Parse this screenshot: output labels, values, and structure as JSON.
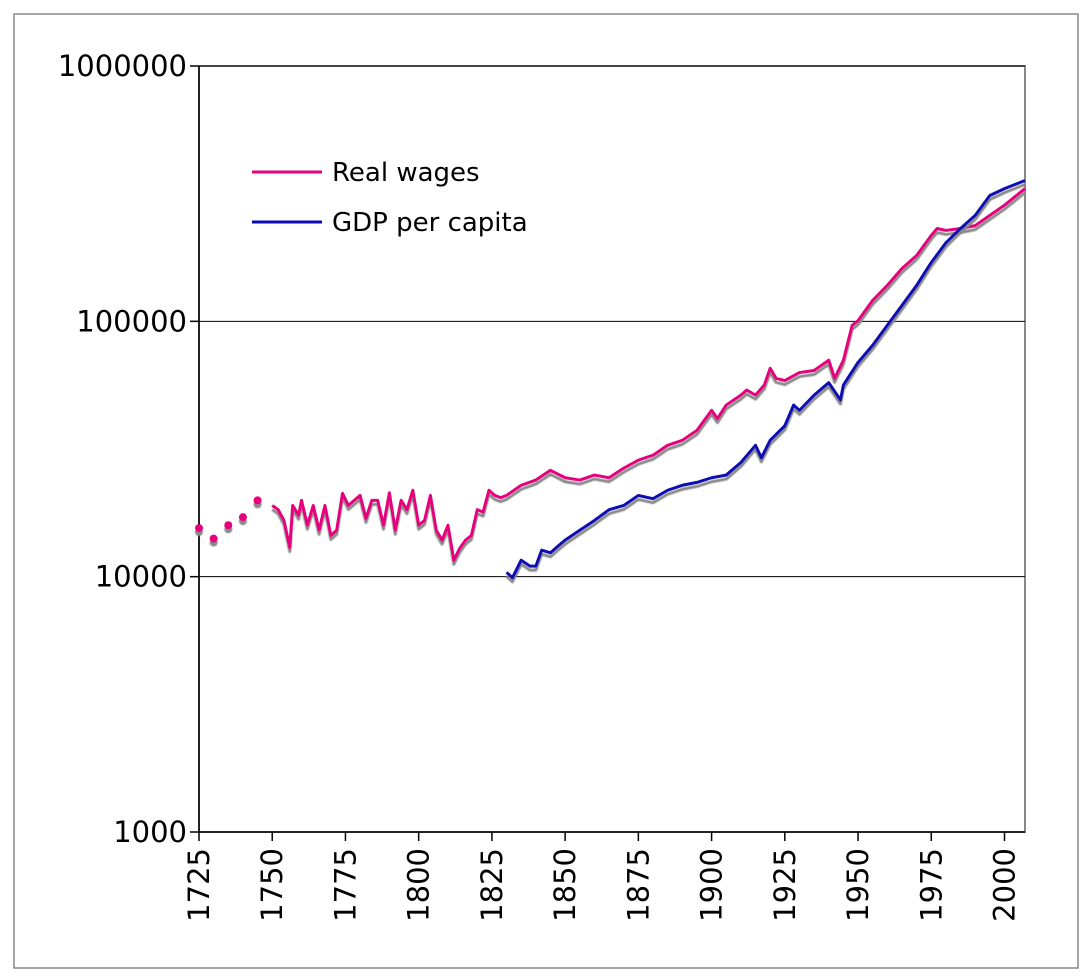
{
  "chart_data": {
    "type": "line",
    "log_y": true,
    "grid": true,
    "legend": "upper left",
    "xlim": [
      1725,
      2007
    ],
    "ylim": [
      1000,
      1000000
    ],
    "xticks": [
      1725,
      1750,
      1775,
      1800,
      1825,
      1850,
      1875,
      1900,
      1925,
      1950,
      1975,
      2000
    ],
    "yticks": [
      1000,
      10000,
      100000,
      1000000
    ],
    "series": [
      {
        "name": "Real wages",
        "color": "#e6007e",
        "x": [
          1725,
          1726,
          1730,
          1731,
          1735,
          1736,
          1740,
          1741,
          1745,
          1746,
          1750,
          1752,
          1754,
          1756,
          1757,
          1759,
          1760,
          1762,
          1764,
          1766,
          1768,
          1770,
          1772,
          1774,
          1776,
          1778,
          1780,
          1782,
          1784,
          1786,
          1788,
          1790,
          1792,
          1794,
          1796,
          1798,
          1800,
          1802,
          1804,
          1806,
          1808,
          1810,
          1812,
          1814,
          1816,
          1818,
          1820,
          1822,
          1824,
          1826,
          1828,
          1830,
          1835,
          1840,
          1845,
          1850,
          1855,
          1860,
          1865,
          1870,
          1875,
          1880,
          1885,
          1890,
          1895,
          1900,
          1902,
          1905,
          1910,
          1912,
          1915,
          1918,
          1920,
          1922,
          1925,
          1930,
          1935,
          1940,
          1942,
          1945,
          1948,
          1950,
          1955,
          1960,
          1965,
          1970,
          1975,
          1977,
          1980,
          1985,
          1990,
          1995,
          2000,
          2007
        ],
        "values": [
          15500,
          null,
          14100,
          null,
          15900,
          null,
          17100,
          null,
          19900,
          null,
          19000,
          18300,
          16600,
          13000,
          19000,
          17400,
          19900,
          15900,
          19000,
          15200,
          19000,
          14500,
          15200,
          21200,
          19000,
          19900,
          20800,
          16900,
          19900,
          19900,
          15900,
          21300,
          15200,
          19900,
          18300,
          21800,
          15900,
          16600,
          20800,
          15200,
          13900,
          15900,
          11600,
          12900,
          13900,
          14500,
          18300,
          17900,
          21800,
          20800,
          20400,
          20800,
          22800,
          23900,
          26100,
          24400,
          23900,
          25000,
          24400,
          26600,
          28600,
          29900,
          32700,
          34200,
          37400,
          44800,
          41600,
          47000,
          51400,
          53800,
          51400,
          56300,
          65500,
          59800,
          58600,
          63000,
          64200,
          70400,
          59800,
          70400,
          96500,
          100600,
          120800,
          138300,
          161000,
          181000,
          217000,
          231000,
          227000,
          231000,
          237000,
          260000,
          285000,
          331000
        ]
      },
      {
        "name": "GDP per capita",
        "color": "#0a0ab4",
        "x": [
          1830,
          1832,
          1835,
          1838,
          1840,
          1842,
          1845,
          1848,
          1850,
          1855,
          1860,
          1865,
          1870,
          1875,
          1880,
          1885,
          1890,
          1895,
          1900,
          1905,
          1910,
          1915,
          1917,
          1920,
          1925,
          1928,
          1930,
          1935,
          1940,
          1944,
          1945,
          1950,
          1955,
          1960,
          1965,
          1970,
          1975,
          1980,
          1985,
          1990,
          1995,
          2000,
          2007
        ],
        "values": [
          10400,
          9900,
          11600,
          11000,
          11000,
          12700,
          12400,
          13300,
          13900,
          15200,
          16600,
          18300,
          19000,
          20800,
          20200,
          21800,
          22800,
          23400,
          24400,
          25000,
          28000,
          32700,
          29200,
          34200,
          39000,
          47000,
          44800,
          51400,
          57500,
          49200,
          56300,
          69000,
          80600,
          96500,
          115400,
          138300,
          170000,
          203000,
          231000,
          260000,
          311000,
          331000,
          356000
        ]
      }
    ]
  }
}
